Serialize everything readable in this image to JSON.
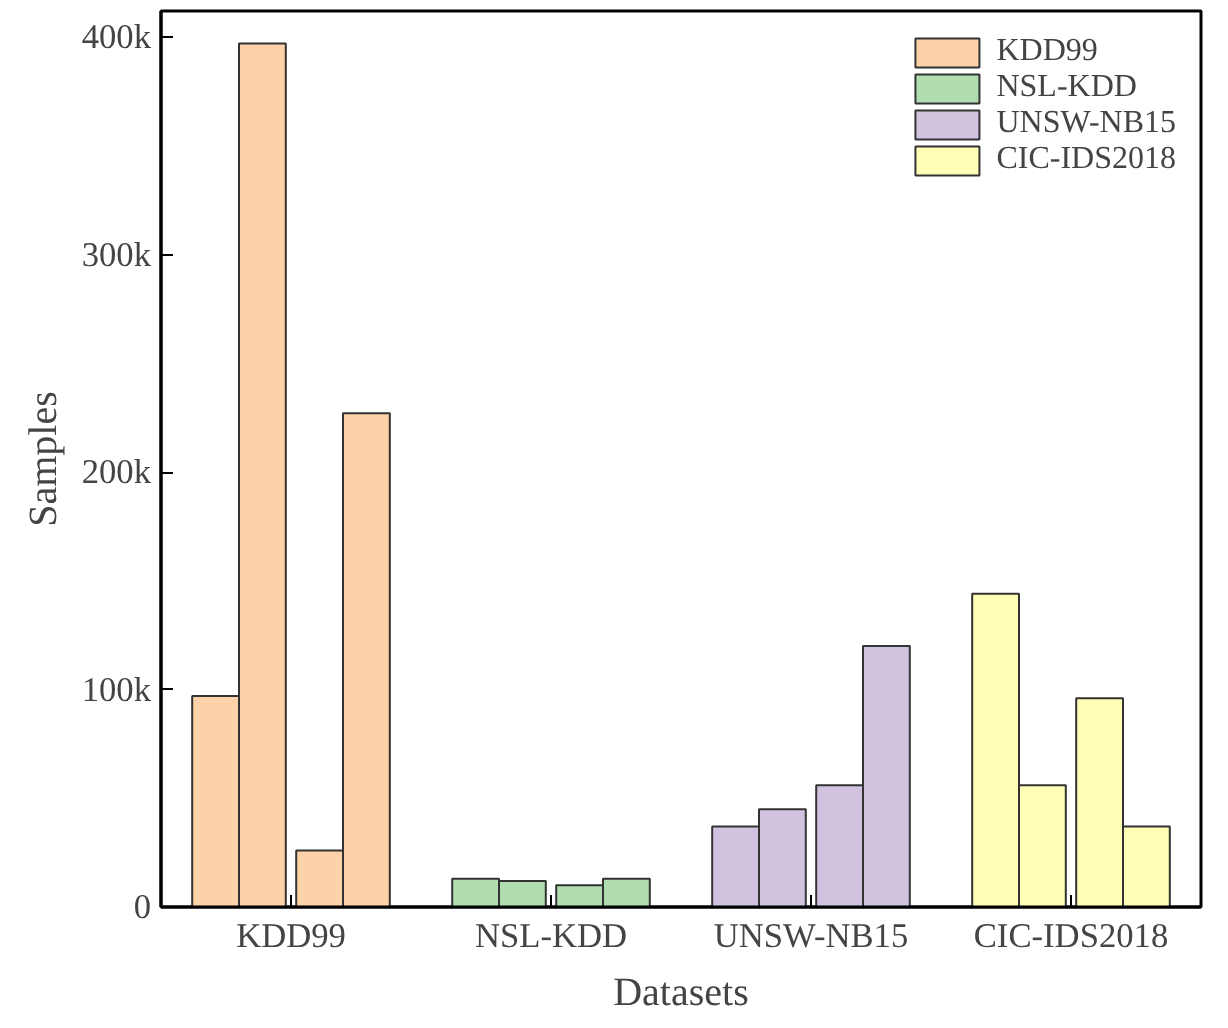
{
  "chart_data": {
    "type": "bar",
    "xlabel": "Datasets",
    "ylabel": "Samples",
    "categories": [
      "KDD99",
      "NSL-KDD",
      "UNSW-NB15",
      "CIC-IDS2018"
    ],
    "ylim": [
      0,
      412000
    ],
    "yticks": [
      {
        "value": 0,
        "label": "0"
      },
      {
        "value": 100000,
        "label": "100k"
      },
      {
        "value": 200000,
        "label": "200k"
      },
      {
        "value": 300000,
        "label": "300k"
      },
      {
        "value": 400000,
        "label": "400k"
      }
    ],
    "series": [
      {
        "name": "KDD99",
        "color": "#fdd2a8",
        "values": [
          97000,
          null,
          null,
          null
        ]
      },
      {
        "color": "#fdd2a8",
        "values": [
          397000,
          null,
          null,
          null
        ]
      },
      {
        "color": "#fdd2a8",
        "values": [
          26000,
          null,
          null,
          null
        ]
      },
      {
        "color": "#fdd2a8",
        "values": [
          227000,
          null,
          null,
          null
        ]
      },
      {
        "name": "NSL-KDD",
        "color": "#b1deb0",
        "values": [
          null,
          13000,
          null,
          null
        ]
      },
      {
        "color": "#b1deb0",
        "values": [
          null,
          12000,
          null,
          null
        ]
      },
      {
        "color": "#b1deb0",
        "values": [
          null,
          10000,
          null,
          null
        ]
      },
      {
        "color": "#b1deb0",
        "values": [
          null,
          13000,
          null,
          null
        ]
      },
      {
        "name": "UNSW-NB15",
        "color": "#d1c2e0",
        "values": [
          null,
          null,
          37000,
          null
        ]
      },
      {
        "color": "#d1c2e0",
        "values": [
          null,
          null,
          45000,
          null
        ]
      },
      {
        "color": "#d1c2e0",
        "values": [
          null,
          null,
          56000,
          null
        ]
      },
      {
        "color": "#d1c2e0",
        "values": [
          null,
          null,
          120000,
          null
        ]
      },
      {
        "name": "CIC-IDS2018",
        "color": "#fefeb6",
        "values": [
          null,
          null,
          null,
          144000
        ]
      },
      {
        "color": "#fefeb6",
        "values": [
          null,
          null,
          null,
          56000
        ]
      },
      {
        "color": "#fefeb6",
        "values": [
          null,
          null,
          null,
          96000
        ]
      },
      {
        "color": "#fefeb6",
        "values": [
          null,
          null,
          null,
          37000
        ]
      }
    ],
    "legend": "top right",
    "grid": false
  }
}
